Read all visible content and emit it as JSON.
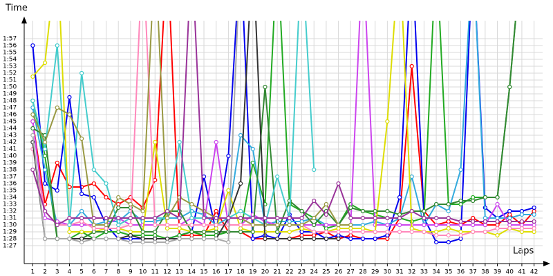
{
  "chart_data": {
    "type": "line",
    "y_title": "Time",
    "x_title": "Laps",
    "x": [
      1,
      2,
      3,
      4,
      5,
      6,
      7,
      8,
      9,
      10,
      11,
      12,
      13,
      14,
      15,
      16,
      17,
      18,
      19,
      20,
      21,
      22,
      23,
      24,
      25,
      26,
      27,
      28,
      29,
      30,
      31,
      32,
      33,
      34,
      35,
      36,
      37,
      38,
      39,
      40,
      41,
      42
    ],
    "xlim": [
      0.3,
      42.7
    ],
    "xticks": [
      1,
      2,
      3,
      4,
      5,
      6,
      7,
      8,
      9,
      10,
      11,
      12,
      13,
      14,
      15,
      16,
      17,
      18,
      19,
      20,
      21,
      22,
      23,
      24,
      25,
      26,
      27,
      28,
      29,
      30,
      31,
      32,
      33,
      34,
      35,
      36,
      37,
      38,
      39,
      40,
      41,
      42
    ],
    "ylim": [
      84.4,
      119.6
    ],
    "yticks": [
      {
        "value": 87,
        "label": "1:27"
      },
      {
        "value": 88,
        "label": "1:28"
      },
      {
        "value": 89,
        "label": "1:29"
      },
      {
        "value": 90,
        "label": "1:30"
      },
      {
        "value": 91,
        "label": "1:31"
      },
      {
        "value": 92,
        "label": "1:32"
      },
      {
        "value": 93,
        "label": "1:33"
      },
      {
        "value": 94,
        "label": "1:34"
      },
      {
        "value": 95,
        "label": "1:35"
      },
      {
        "value": 96,
        "label": "1:36"
      },
      {
        "value": 97,
        "label": "1:37"
      },
      {
        "value": 98,
        "label": "1:38"
      },
      {
        "value": 99,
        "label": "1:39"
      },
      {
        "value": 100,
        "label": "1:40"
      },
      {
        "value": 101,
        "label": "1:41"
      },
      {
        "value": 102,
        "label": "1:42"
      },
      {
        "value": 103,
        "label": "1:43"
      },
      {
        "value": 104,
        "label": "1:44"
      },
      {
        "value": 105,
        "label": "1:45"
      },
      {
        "value": 106,
        "label": "1:46"
      },
      {
        "value": 107,
        "label": "1:47"
      },
      {
        "value": 108,
        "label": "1:48"
      },
      {
        "value": 109,
        "label": "1:49"
      },
      {
        "value": 110,
        "label": "1:50"
      },
      {
        "value": 111,
        "label": "1:51"
      },
      {
        "value": 112,
        "label": "1:52"
      },
      {
        "value": 113,
        "label": "1:53"
      },
      {
        "value": 114,
        "label": "1:54"
      },
      {
        "value": 115,
        "label": "1:55"
      },
      {
        "value": 116,
        "label": "1:56"
      },
      {
        "value": 117,
        "label": "1:57"
      }
    ],
    "grid": true,
    "series": [
      {
        "color": "#ff0000",
        "values": [
          105,
          93,
          99,
          95.5,
          95.5,
          96,
          94,
          93,
          94,
          92.5,
          96.5,
          130,
          88.5,
          88.5,
          88.5,
          92,
          89,
          89,
          88,
          88,
          88,
          88,
          88.5,
          88.5,
          89,
          88,
          88.5,
          88,
          88,
          88,
          91,
          113,
          92,
          90,
          90.5,
          90,
          91,
          90,
          90,
          91.5,
          90,
          92
        ]
      },
      {
        "color": "#0000ee",
        "values": [
          116,
          96,
          95,
          108.5,
          94.5,
          94,
          90,
          88,
          88,
          88,
          88,
          88,
          88.5,
          89,
          97,
          89,
          100,
          130,
          88,
          88.5,
          88,
          91.5,
          89,
          89,
          88,
          88.5,
          88,
          88,
          88,
          88.5,
          94,
          130,
          91,
          87.5,
          87.5,
          88,
          130,
          92.5,
          91,
          92,
          92,
          92.5
        ]
      },
      {
        "color": "#22aa22",
        "values": [
          108,
          100,
          88,
          88,
          89,
          88,
          89,
          89,
          88.5,
          88.5,
          88.5,
          88,
          88.5,
          89,
          88.5,
          88.5,
          89,
          89,
          99,
          93,
          130,
          93,
          92,
          91,
          89.5,
          90,
          93,
          92,
          91.5,
          91,
          91,
          90.5,
          91,
          130,
          93,
          93,
          94,
          94,
          94,
          110,
          130,
          null
        ]
      },
      {
        "color": "#33aadd",
        "values": [
          107,
          98,
          90,
          90,
          92,
          90,
          90.5,
          90.5,
          92,
          90.5,
          90.5,
          91,
          91,
          92,
          91.5,
          90,
          91,
          103,
          101,
          90,
          90.5,
          90.5,
          90.5,
          91,
          90,
          90,
          90,
          90,
          90.5,
          90,
          91,
          97,
          90,
          93,
          92,
          98,
          130,
          91,
          91,
          91,
          91.5,
          91.5
        ]
      },
      {
        "color": "#cc44ee",
        "values": [
          105,
          91,
          90.5,
          90,
          90,
          90,
          90,
          91,
          90,
          90,
          90,
          90,
          90,
          91,
          90,
          102,
          90,
          90,
          91.5,
          90.5,
          90,
          90,
          90,
          90,
          90,
          90,
          90,
          130,
          90,
          90,
          90,
          90,
          90,
          90,
          90,
          90,
          90,
          90,
          93,
          90,
          90,
          90
        ]
      },
      {
        "color": "#dddd00",
        "values": [
          111.5,
          113.5,
          130,
          89,
          89,
          89,
          89.5,
          89.5,
          89,
          89,
          102,
          89.5,
          89.5,
          89,
          89,
          89.5,
          95,
          89.5,
          89,
          89,
          89,
          89,
          89.5,
          89,
          89,
          89.5,
          89.5,
          89.5,
          89,
          105,
          130,
          89.5,
          89,
          89,
          89.5,
          89,
          89,
          89,
          88.5,
          89.5,
          89,
          89
        ]
      },
      {
        "color": "#338833",
        "values": [
          104,
          103,
          88,
          88,
          88,
          89,
          89,
          92.5,
          92.5,
          89,
          89,
          92,
          92,
          89,
          89,
          89,
          89,
          89,
          89,
          110,
          89,
          93.5,
          92,
          90,
          92,
          90,
          92.5,
          92,
          92,
          92,
          91.5,
          92,
          92,
          93,
          93,
          93.5,
          93.5,
          94,
          94,
          110,
          130,
          null
        ]
      },
      {
        "color": "#ff88bb",
        "values": [
          101,
          92,
          90,
          90,
          90.5,
          89.5,
          89.5,
          89.5,
          90,
          130,
          90,
          90,
          90,
          90,
          90,
          90,
          90,
          90,
          90,
          90,
          90,
          90,
          90,
          89,
          89,
          89,
          89,
          89,
          89,
          89,
          89,
          89,
          89,
          88.5,
          88.5,
          88.5,
          89,
          89,
          89.5,
          89.5,
          89.5,
          89.5
        ]
      },
      {
        "color": "#44cccc",
        "values": [
          108,
          101,
          116,
          90,
          112,
          98,
          96,
          90,
          91,
          91,
          91,
          91,
          102,
          91,
          91,
          91,
          91,
          92,
          91,
          90,
          97,
          91,
          130,
          98,
          null,
          null,
          null,
          null,
          null,
          null,
          null,
          null,
          null,
          null,
          null,
          null,
          null,
          null,
          null,
          null,
          null,
          null
        ]
      },
      {
        "color": "#999944",
        "values": [
          106,
          102,
          107,
          106,
          102.5,
          90,
          90,
          94,
          93,
          92,
          130,
          91,
          94,
          93,
          92,
          91,
          91,
          91,
          90,
          90,
          90,
          90,
          90,
          91,
          93,
          90,
          90,
          null,
          null,
          null,
          null,
          null,
          null,
          null,
          null,
          null,
          null,
          null,
          null,
          null,
          null,
          null
        ]
      },
      {
        "color": "#333333",
        "values": [
          102,
          88,
          88,
          88,
          88,
          88,
          88,
          88,
          88.5,
          88,
          88,
          88,
          88,
          88,
          88,
          88,
          91,
          96,
          130,
          88,
          88,
          88,
          88,
          88,
          88,
          88,
          null,
          null,
          null,
          null,
          null,
          null,
          null,
          null,
          null,
          null,
          null,
          null,
          null,
          null,
          null,
          null
        ]
      },
      {
        "color": "#aaaaaa",
        "values": [
          103,
          88,
          88,
          88,
          87.5,
          88,
          88,
          88,
          87.5,
          87.5,
          87.5,
          87.5,
          88,
          88,
          88,
          88,
          87.5,
          130,
          null,
          null,
          null,
          null,
          null,
          null,
          null,
          null,
          null,
          null,
          null,
          null,
          null,
          null,
          null,
          null,
          null,
          null,
          null,
          null,
          null,
          null,
          null,
          null
        ]
      },
      {
        "color": "#993399",
        "values": [
          98,
          92,
          90,
          91,
          91,
          91,
          91,
          91,
          91,
          91,
          91,
          92,
          91,
          130,
          91,
          91,
          91,
          91,
          91,
          91,
          91,
          91,
          91,
          93.5,
          91.5,
          96,
          91,
          91,
          91,
          91,
          91,
          92,
          91,
          91,
          91,
          90.5,
          90.5,
          90.5,
          90.5,
          90.5,
          90.5,
          90.5
        ]
      }
    ]
  }
}
